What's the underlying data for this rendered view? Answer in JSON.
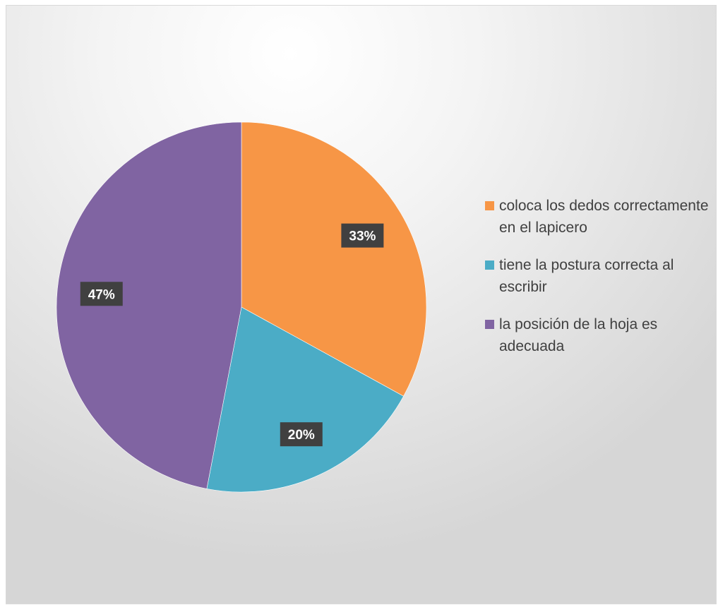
{
  "chart_data": {
    "type": "pie",
    "title": "",
    "series": [
      {
        "values": [
          33,
          20,
          47
        ],
        "labels": [
          "33%",
          "20%",
          "47%"
        ]
      }
    ],
    "categories": [
      "coloca los dedos correctamente en el lapicero",
      "tiene la postura correcta al escribir",
      "la posición de la hoja es adecuada"
    ],
    "colors": [
      "#F79646",
      "#4BACC6",
      "#8064A2"
    ],
    "legend_position": "right",
    "data_label_background": "#404040"
  }
}
